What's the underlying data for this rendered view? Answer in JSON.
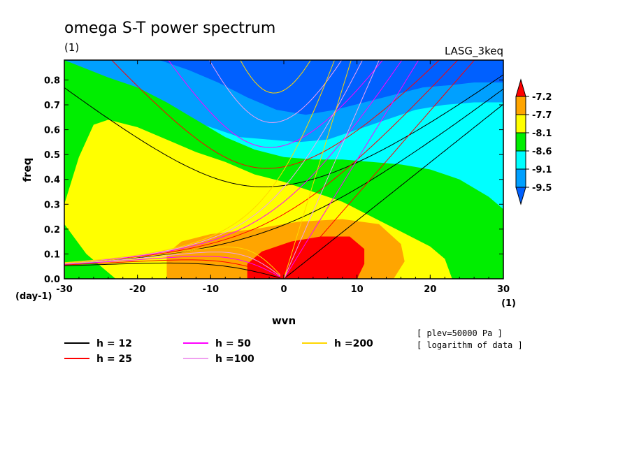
{
  "title": "omega S-T power spectrum",
  "subtitle_left": "(1)",
  "subtitle_right": "LASG_3keq",
  "notes": [
    "[ plev=50000 Pa ]",
    "[ logarithm of data ]"
  ],
  "chart_data": {
    "type": "heatmap",
    "xlabel": "wvn",
    "ylabel": "freq",
    "x_unit_label": "(1)",
    "y_unit_label": "(day-1)",
    "xlim": [
      -30,
      30
    ],
    "ylim": [
      0,
      0.88
    ],
    "x_ticks": [
      -30,
      -20,
      -10,
      0,
      10,
      20,
      30
    ],
    "y_ticks": [
      0.0,
      0.1,
      0.2,
      0.3,
      0.4,
      0.5,
      0.6,
      0.7,
      0.8
    ],
    "colorbar": {
      "levels": [
        "-7.2",
        "-7.7",
        "-8.1",
        "-8.6",
        "-9.1",
        "-9.5"
      ],
      "colors": [
        "#ff0000",
        "#ffa500",
        "#ffff00",
        "#00ee00",
        "#00ffff",
        "#00a0ff",
        "#0060ff"
      ]
    },
    "fills": [
      {
        "color": "#ffff00",
        "points": [
          [
            -30,
            0.3
          ],
          [
            -28,
            0.49
          ],
          [
            -26,
            0.62
          ],
          [
            -24,
            0.64
          ],
          [
            -20,
            0.61
          ],
          [
            -16,
            0.56
          ],
          [
            -12,
            0.51
          ],
          [
            -8,
            0.47
          ],
          [
            -4,
            0.42
          ],
          [
            0,
            0.39
          ],
          [
            4,
            0.35
          ],
          [
            8,
            0.31
          ],
          [
            12,
            0.25
          ],
          [
            16,
            0.19
          ],
          [
            20,
            0.13
          ],
          [
            22,
            0.08
          ],
          [
            23,
            0.0
          ],
          [
            -23,
            0.0
          ],
          [
            -25,
            0.05
          ],
          [
            -27,
            0.1
          ],
          [
            -28.5,
            0.16
          ],
          [
            -30,
            0.22
          ]
        ]
      },
      {
        "color": "#ffa500",
        "points": [
          [
            -16,
            0.0
          ],
          [
            -16,
            0.1
          ],
          [
            -14,
            0.15
          ],
          [
            -10,
            0.18
          ],
          [
            -4,
            0.2
          ],
          [
            2,
            0.23
          ],
          [
            8,
            0.24
          ],
          [
            13,
            0.22
          ],
          [
            16,
            0.14
          ],
          [
            16.5,
            0.07
          ],
          [
            15,
            0.0
          ]
        ]
      },
      {
        "color": "#ff0000",
        "points": [
          [
            -5,
            0.0
          ],
          [
            -5,
            0.06
          ],
          [
            -3,
            0.11
          ],
          [
            1,
            0.15
          ],
          [
            5,
            0.17
          ],
          [
            9,
            0.17
          ],
          [
            11,
            0.12
          ],
          [
            11,
            0.06
          ],
          [
            10,
            0.0
          ]
        ]
      }
    ],
    "contours": [
      {
        "color": "#00a0ff",
        "points": [
          [
            -17,
            0.88
          ],
          [
            -13,
            0.84
          ],
          [
            -9,
            0.79
          ],
          [
            -5,
            0.73
          ],
          [
            -1,
            0.68
          ],
          [
            3,
            0.66
          ],
          [
            7,
            0.68
          ],
          [
            11,
            0.71
          ],
          [
            15,
            0.74
          ],
          [
            19,
            0.77
          ],
          [
            23,
            0.78
          ],
          [
            26,
            0.79
          ],
          [
            30,
            0.79
          ]
        ]
      },
      {
        "color": "#00ffff",
        "points": [
          [
            -30,
            0.85
          ],
          [
            -26,
            0.83
          ],
          [
            -22,
            0.76
          ],
          [
            -18,
            0.7
          ],
          [
            -14,
            0.65
          ],
          [
            -10,
            0.61
          ],
          [
            -6,
            0.57
          ],
          [
            -2,
            0.56
          ],
          [
            2,
            0.55
          ],
          [
            6,
            0.56
          ],
          [
            10,
            0.6
          ],
          [
            14,
            0.64
          ],
          [
            18,
            0.68
          ],
          [
            22,
            0.7
          ],
          [
            26,
            0.71
          ],
          [
            30,
            0.71
          ]
        ]
      },
      {
        "color": "#00ee00",
        "points": [
          [
            -30,
            0.88
          ],
          [
            -24,
            0.81
          ],
          [
            -20,
            0.77
          ],
          [
            -16,
            0.71
          ],
          [
            -12,
            0.64
          ],
          [
            -8,
            0.57
          ],
          [
            -4,
            0.52
          ],
          [
            0,
            0.49
          ],
          [
            4,
            0.48
          ],
          [
            8,
            0.48
          ],
          [
            12,
            0.47
          ],
          [
            16,
            0.46
          ],
          [
            20,
            0.44
          ],
          [
            24,
            0.4
          ],
          [
            28,
            0.33
          ],
          [
            30,
            0.28
          ]
        ]
      }
    ],
    "series": [
      {
        "name": "h = 12",
        "color": "#000000"
      },
      {
        "name": "h = 25",
        "color": "#ff0000"
      },
      {
        "name": "h = 50",
        "color": "#ff00ff"
      },
      {
        "name": "h =100",
        "color": "#f0a0f0"
      },
      {
        "name": "h =200",
        "color": "#ffd700"
      }
    ]
  }
}
